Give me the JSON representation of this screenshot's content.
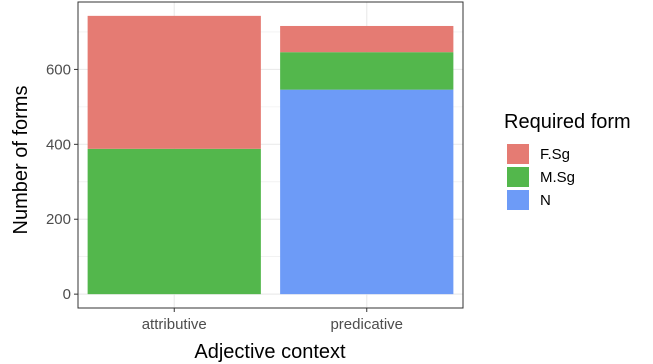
{
  "chart_data": {
    "type": "bar",
    "stacked": true,
    "categories": [
      "attributive",
      "predicative"
    ],
    "series": [
      {
        "name": "F.Sg",
        "color": "#e57b73",
        "values": [
          355,
          70
        ]
      },
      {
        "name": "M.Sg",
        "color": "#53b74c",
        "values": [
          388,
          100
        ]
      },
      {
        "name": "N",
        "color": "#6d9bf7",
        "values": [
          0,
          546
        ]
      }
    ],
    "xlabel": "Adjective context",
    "ylabel": "Number of forms",
    "ylim": [
      -37,
      780
    ],
    "yticks": [
      0,
      200,
      400,
      600
    ],
    "legend": {
      "title": "Required form",
      "position": "right"
    },
    "grid": true,
    "panel_background": "#ffffff",
    "grid_color": "#ebebeb"
  }
}
